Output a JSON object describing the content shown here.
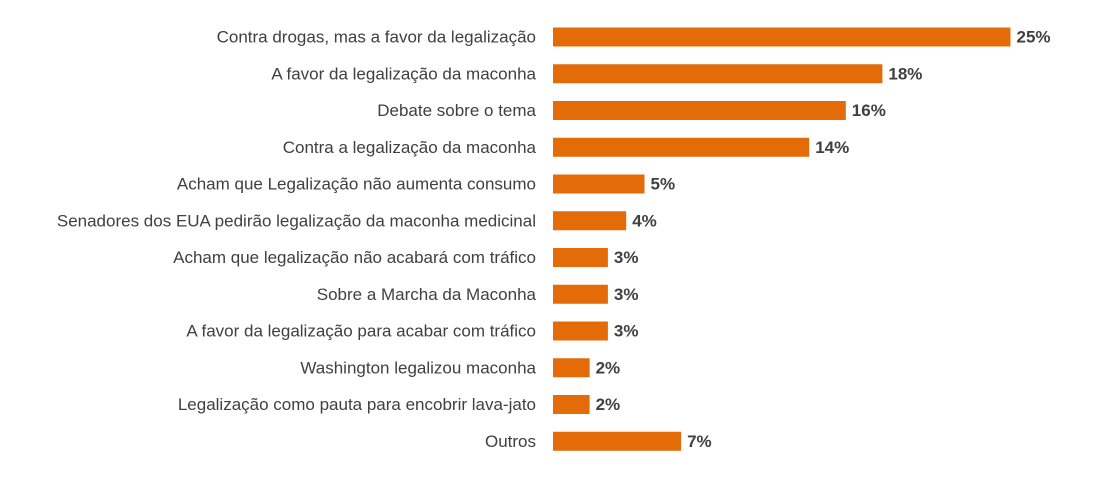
{
  "chart_data": {
    "type": "bar",
    "orientation": "horizontal",
    "categories": [
      "Contra drogas, mas a favor da legalização",
      "A favor da legalização da maconha",
      "Debate sobre o tema",
      "Contra a legalização da maconha",
      "Acham que Legalização não aumenta consumo",
      "Senadores dos EUA pedirão legalização da maconha medicinal",
      "Acham que legalização não acabará com tráfico",
      "Sobre a Marcha da Maconha",
      "A favor da legalização para acabar com tráfico",
      "Washington legalizou maconha",
      "Legalização como pauta para encobrir lava-jato",
      "Outros"
    ],
    "values": [
      25,
      18,
      16,
      14,
      5,
      4,
      3,
      3,
      3,
      2,
      2,
      7
    ],
    "value_labels": [
      "25%",
      "18%",
      "16%",
      "14%",
      "5%",
      "4%",
      "3%",
      "3%",
      "3%",
      "2%",
      "2%",
      "7%"
    ],
    "title": "",
    "xlabel": "",
    "ylabel": "",
    "xlim": [
      0,
      25
    ],
    "grid": false,
    "legend": "none",
    "bar_color": "#E36C09"
  }
}
